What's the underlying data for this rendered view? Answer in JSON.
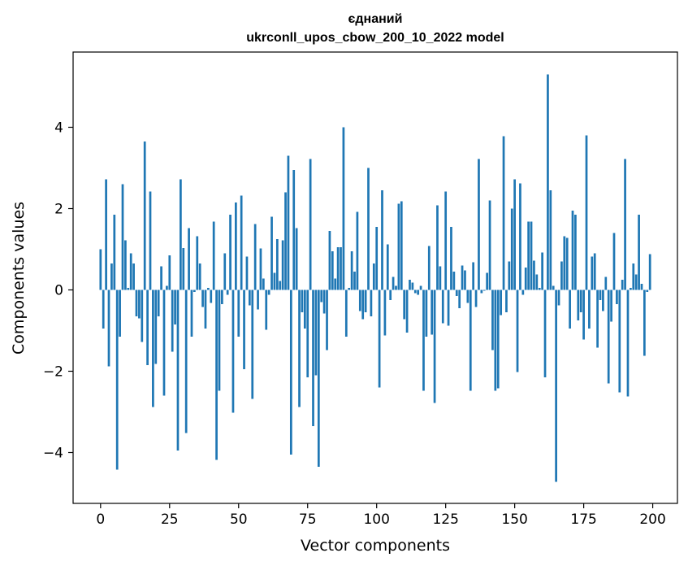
{
  "chart_data": {
    "type": "bar",
    "title_line1": "єднаний",
    "title_line2": "ukrconll_upos_cbow_200_10_2022 model",
    "xlabel": "Vector components",
    "ylabel": "Components values",
    "xlim": [
      -9.95,
      208.95
    ],
    "ylim": [
      -5.25,
      5.85
    ],
    "xticks": [
      0,
      25,
      50,
      75,
      100,
      125,
      150,
      175,
      200
    ],
    "yticks": [
      -4,
      -2,
      0,
      2,
      4
    ],
    "ytick_labels": [
      "−4",
      "−2",
      "0",
      "2",
      "4"
    ],
    "grid": false,
    "bar_color": "#1f77b4",
    "values": [
      1.0,
      -0.95,
      2.72,
      -1.88,
      0.65,
      1.85,
      -4.42,
      -1.15,
      2.6,
      1.22,
      0.05,
      0.9,
      0.65,
      -0.65,
      -0.7,
      -1.28,
      3.65,
      -1.85,
      2.42,
      -2.88,
      -1.82,
      -0.65,
      0.58,
      -2.6,
      0.1,
      0.85,
      -1.52,
      -0.85,
      -3.95,
      2.72,
      1.03,
      -3.52,
      1.52,
      -1.15,
      -0.05,
      1.32,
      0.65,
      -0.42,
      -0.95,
      0.05,
      -0.32,
      1.68,
      -4.18,
      -2.48,
      -0.35,
      0.9,
      -0.12,
      1.85,
      -3.02,
      2.15,
      -1.15,
      2.32,
      -1.95,
      0.82,
      -0.38,
      -2.68,
      1.62,
      -0.48,
      1.02,
      0.28,
      -0.98,
      -0.12,
      1.8,
      0.42,
      1.25,
      0.22,
      1.22,
      2.4,
      3.3,
      -4.05,
      2.95,
      1.52,
      -2.88,
      -0.55,
      -0.95,
      -2.15,
      3.22,
      -3.35,
      -2.1,
      -4.35,
      -0.3,
      -0.58,
      -1.48,
      1.45,
      0.95,
      0.28,
      1.05,
      1.05,
      4.0,
      -1.15,
      0.05,
      0.95,
      0.45,
      1.92,
      -0.52,
      -0.72,
      -0.55,
      3.0,
      -0.65,
      0.65,
      1.55,
      -2.4,
      2.45,
      -1.12,
      1.12,
      -0.25,
      0.32,
      0.1,
      2.12,
      2.18,
      -0.72,
      -1.05,
      0.25,
      0.18,
      -0.08,
      -0.12,
      0.1,
      -2.48,
      -1.15,
      1.08,
      -1.1,
      -2.78,
      2.08,
      0.58,
      -0.82,
      2.42,
      -0.88,
      1.55,
      0.45,
      -0.15,
      -0.45,
      0.6,
      0.48,
      -0.32,
      -2.48,
      0.68,
      -0.42,
      3.22,
      -0.08,
      -0.02,
      0.42,
      2.2,
      -1.48,
      -2.48,
      -2.42,
      -0.62,
      3.78,
      -0.55,
      0.7,
      2.0,
      2.72,
      -2.02,
      2.62,
      -0.12,
      0.55,
      1.68,
      1.68,
      0.72,
      0.38,
      0.05,
      0.92,
      -2.15,
      5.3,
      2.45,
      0.1,
      -4.72,
      -0.38,
      0.7,
      1.32,
      1.28,
      -0.95,
      1.95,
      1.85,
      -0.75,
      -0.55,
      -1.22,
      3.8,
      -0.95,
      0.82,
      0.9,
      -1.42,
      -0.25,
      -0.52,
      0.32,
      -2.3,
      -0.78,
      1.4,
      -0.35,
      -2.52,
      0.25,
      3.22,
      -2.62,
      0.05,
      0.65,
      0.38,
      1.85,
      0.15,
      -1.62,
      -0.05,
      0.88
    ]
  }
}
